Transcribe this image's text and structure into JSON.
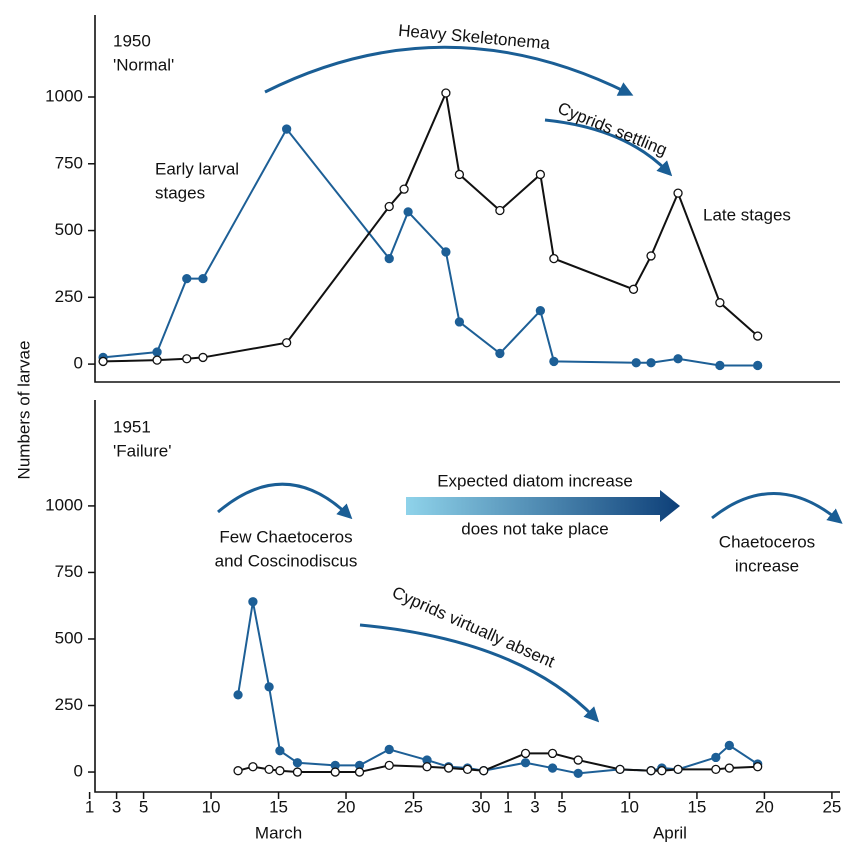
{
  "chart_data": [
    {
      "type": "line",
      "title": "1950",
      "subtitle": "'Normal'",
      "ylabel": "Numbers of larvae",
      "xlim": [
        1.4,
        56.6
      ],
      "ylim": [
        -67,
        1307
      ],
      "yticks": [
        0,
        250,
        500,
        750,
        1000
      ],
      "annotations": [
        "Heavy Skeletonema",
        "Cyprids settling",
        "Early larval",
        "stages",
        "Late stages"
      ],
      "series": [
        {
          "color": "#1d5f96",
          "marker": "filled",
          "x": [
            2.0,
            6.0,
            8.2,
            9.4,
            15.6,
            23.2,
            24.6,
            27.4,
            28.4,
            31.4,
            34.4,
            35.4,
            41.5,
            42.6,
            44.6,
            47.7,
            50.5
          ],
          "values": [
            25,
            45,
            320,
            320,
            880,
            395,
            570,
            420,
            158,
            40,
            200,
            10,
            5,
            5,
            20,
            -5,
            -5
          ]
        },
        {
          "color": "#111111",
          "marker": "open",
          "x": [
            2.0,
            6.0,
            8.2,
            9.4,
            15.6,
            23.2,
            24.3,
            27.4,
            28.4,
            31.4,
            34.4,
            35.4,
            41.3,
            42.6,
            44.6,
            47.7,
            50.5
          ],
          "values": [
            10,
            15,
            20,
            25,
            80,
            590,
            655,
            1015,
            710,
            575,
            710,
            395,
            280,
            405,
            640,
            230,
            105
          ]
        }
      ]
    },
    {
      "type": "line",
      "title": "1951",
      "subtitle": "'Failure'",
      "xlim": [
        1.4,
        56.6
      ],
      "ylim": [
        -75,
        1398
      ],
      "yticks": [
        0,
        250,
        500,
        750,
        1000
      ],
      "xticks": [
        1,
        3,
        5,
        10,
        15,
        20,
        25,
        30,
        {
          "value": 32,
          "label": "1"
        },
        {
          "value": 34,
          "label": "3"
        },
        {
          "value": 36,
          "label": "5"
        },
        {
          "value": 41,
          "label": "10"
        },
        {
          "value": 46,
          "label": "15"
        },
        {
          "value": 51,
          "label": "20"
        },
        {
          "value": 56,
          "label": "25"
        }
      ],
      "x_group_labels": [
        {
          "value": 15,
          "label": "March"
        },
        {
          "value": 44,
          "label": "April"
        }
      ],
      "annotations": [
        "Few Chaetoceros",
        "and Coscinodiscus",
        "Expected diatom increase",
        "does not take place",
        "Cyprids virtually absent",
        "Chaetoceros",
        "increase"
      ],
      "series": [
        {
          "color": "#1d5f96",
          "marker": "filled",
          "x": [
            12.0,
            13.1,
            14.3,
            15.1,
            16.4,
            19.2,
            21.0,
            23.2,
            26.0,
            27.6,
            29.0,
            30.2,
            33.3,
            35.3,
            37.2,
            40.3,
            42.6,
            43.4,
            44.6,
            47.4,
            48.4,
            50.5
          ],
          "values": [
            290,
            640,
            320,
            80,
            35,
            25,
            25,
            85,
            45,
            20,
            15,
            5,
            35,
            15,
            -5,
            10,
            5,
            15,
            10,
            55,
            100,
            30
          ]
        },
        {
          "color": "#111111",
          "marker": "open",
          "x": [
            12.0,
            13.1,
            14.3,
            15.1,
            16.4,
            19.2,
            21.0,
            23.2,
            26.0,
            27.6,
            29.0,
            30.2,
            33.3,
            35.3,
            37.2,
            40.3,
            42.6,
            43.4,
            44.6,
            47.4,
            48.4,
            50.5
          ],
          "values": [
            5,
            20,
            10,
            5,
            0,
            0,
            0,
            25,
            20,
            15,
            10,
            5,
            70,
            70,
            45,
            10,
            5,
            5,
            10,
            10,
            15,
            20
          ]
        }
      ]
    }
  ]
}
